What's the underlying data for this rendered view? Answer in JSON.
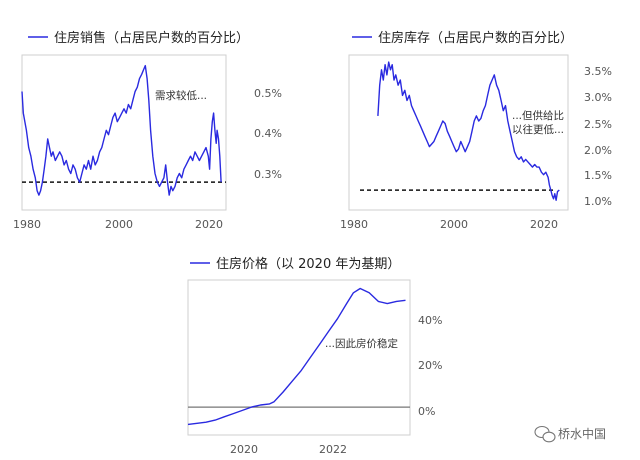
{
  "watermark": "桥水中国",
  "colors": {
    "series": "#2a2ae0",
    "refline": "#111111",
    "zeroline": "#777777"
  },
  "chart_data": [
    {
      "type": "line",
      "title": "住房销售（占居民户数的百分比）",
      "annotation": "需求较低...",
      "x_ticks": [
        "1980",
        "2000",
        "2020"
      ],
      "y_ticks": [
        "0.5%",
        "0.4%",
        "0.3%"
      ],
      "xlim": [
        1978,
        2024
      ],
      "ylim": [
        0.24,
        0.59
      ],
      "reference_line": 0.3,
      "series": [
        {
          "x": [
            1978.0,
            1978.3,
            1979.0,
            1979.5,
            1980.0,
            1980.5,
            1981.0,
            1981.4,
            1981.8,
            1982.2,
            1982.6,
            1983.0,
            1983.4,
            1983.8,
            1984.2,
            1984.6,
            1985.0,
            1985.5,
            1986.0,
            1986.5,
            1987.0,
            1987.5,
            1988.0,
            1988.5,
            1989.0,
            1989.5,
            1990.0,
            1990.5,
            1991.0,
            1991.5,
            1992.0,
            1992.5,
            1993.0,
            1993.5,
            1994.0,
            1994.5,
            1995.0,
            1995.5,
            1996.0,
            1996.5,
            1997.0,
            1997.5,
            1998.0,
            1998.5,
            1999.0,
            1999.5,
            2000.0,
            2000.5,
            2001.0,
            2001.5,
            2002.0,
            2002.5,
            2003.0,
            2003.5,
            2004.0,
            2004.5,
            2005.0,
            2005.4,
            2005.8,
            2006.2,
            2006.6,
            2007.0,
            2007.5,
            2008.0,
            2008.5,
            2009.0,
            2009.5,
            2010.0,
            2010.4,
            2010.8,
            2011.2,
            2011.6,
            2012.0,
            2012.5,
            2013.0,
            2013.5,
            2014.0,
            2014.5,
            2015.0,
            2015.5,
            2016.0,
            2016.5,
            2017.0,
            2017.5,
            2018.0,
            2018.5,
            2019.0,
            2019.5,
            2020.0,
            2020.3,
            2020.6,
            2020.9,
            2021.2,
            2021.5,
            2021.8,
            2022.0,
            2022.3,
            2022.6,
            2022.9
          ],
          "y": [
            0.51,
            0.46,
            0.42,
            0.38,
            0.36,
            0.33,
            0.31,
            0.28,
            0.27,
            0.28,
            0.3,
            0.33,
            0.36,
            0.4,
            0.38,
            0.36,
            0.37,
            0.35,
            0.36,
            0.37,
            0.36,
            0.34,
            0.35,
            0.33,
            0.32,
            0.34,
            0.33,
            0.31,
            0.3,
            0.32,
            0.34,
            0.33,
            0.35,
            0.33,
            0.36,
            0.34,
            0.35,
            0.37,
            0.38,
            0.4,
            0.42,
            0.41,
            0.43,
            0.45,
            0.46,
            0.44,
            0.45,
            0.46,
            0.47,
            0.46,
            0.48,
            0.47,
            0.49,
            0.51,
            0.52,
            0.54,
            0.55,
            0.56,
            0.57,
            0.54,
            0.49,
            0.42,
            0.36,
            0.32,
            0.3,
            0.29,
            0.3,
            0.31,
            0.34,
            0.3,
            0.27,
            0.29,
            0.28,
            0.29,
            0.31,
            0.32,
            0.31,
            0.33,
            0.34,
            0.35,
            0.36,
            0.35,
            0.37,
            0.36,
            0.35,
            0.36,
            0.37,
            0.38,
            0.36,
            0.33,
            0.4,
            0.44,
            0.46,
            0.42,
            0.39,
            0.42,
            0.4,
            0.36,
            0.3
          ]
        }
      ]
    },
    {
      "type": "line",
      "title": "住房库存（占居民户数的百分比）",
      "annotation": [
        "...但供给比",
        "以往更低..."
      ],
      "x_ticks": [
        "1980",
        "2000",
        "2020"
      ],
      "y_ticks": [
        "3.5%",
        "3.0%",
        "2.5%",
        "2.0%",
        "1.5%",
        "1.0%"
      ],
      "xlim": [
        1978,
        2024
      ],
      "ylim": [
        0.8,
        3.75
      ],
      "reference_line": 1.15,
      "series": [
        {
          "x": [
            1982.0,
            1982.4,
            1982.8,
            1983.2,
            1983.6,
            1984.0,
            1984.4,
            1984.8,
            1985.2,
            1985.6,
            1986.0,
            1986.5,
            1987.0,
            1987.5,
            1988.0,
            1988.5,
            1989.0,
            1989.5,
            1990.0,
            1990.5,
            1991.0,
            1991.5,
            1992.0,
            1992.5,
            1993.0,
            1993.5,
            1994.0,
            1994.5,
            1995.0,
            1995.5,
            1996.0,
            1996.5,
            1997.0,
            1997.5,
            1998.0,
            1998.5,
            1999.0,
            1999.5,
            2000.0,
            2000.5,
            2001.0,
            2001.5,
            2002.0,
            2002.5,
            2003.0,
            2003.5,
            2004.0,
            2004.5,
            2005.0,
            2005.5,
            2006.0,
            2006.5,
            2007.0,
            2007.5,
            2008.0,
            2008.5,
            2009.0,
            2009.5,
            2010.0,
            2010.5,
            2011.0,
            2011.5,
            2012.0,
            2012.5,
            2013.0,
            2013.5,
            2014.0,
            2014.5,
            2015.0,
            2015.5,
            2016.0,
            2016.5,
            2017.0,
            2017.5,
            2018.0,
            2018.5,
            2019.0,
            2019.5,
            2020.0,
            2020.3,
            2020.6,
            2020.9,
            2021.2,
            2021.5,
            2021.8,
            2022.1,
            2022.5
          ],
          "y": [
            2.6,
            3.2,
            3.5,
            3.3,
            3.6,
            3.4,
            3.65,
            3.5,
            3.6,
            3.3,
            3.4,
            3.2,
            3.3,
            3.0,
            3.1,
            2.9,
            3.0,
            2.8,
            2.7,
            2.6,
            2.5,
            2.4,
            2.3,
            2.2,
            2.1,
            2.0,
            2.05,
            2.1,
            2.2,
            2.3,
            2.4,
            2.5,
            2.45,
            2.3,
            2.2,
            2.1,
            2.0,
            1.9,
            1.95,
            2.1,
            2.0,
            1.9,
            2.0,
            2.1,
            2.3,
            2.5,
            2.6,
            2.5,
            2.55,
            2.7,
            2.8,
            3.0,
            3.2,
            3.3,
            3.4,
            3.2,
            3.1,
            2.9,
            2.7,
            2.8,
            2.5,
            2.3,
            2.1,
            1.9,
            1.8,
            1.75,
            1.8,
            1.7,
            1.75,
            1.7,
            1.65,
            1.6,
            1.65,
            1.6,
            1.6,
            1.5,
            1.45,
            1.5,
            1.4,
            1.25,
            1.15,
            1.05,
            0.98,
            1.08,
            0.95,
            1.12,
            1.15
          ]
        }
      ]
    },
    {
      "type": "line",
      "title": "住房价格（以 2020 年为基期）",
      "annotation": "...因此房价稳定",
      "x_ticks": [
        "2020",
        "2022"
      ],
      "y_ticks": [
        "40%",
        "20%",
        "0%"
      ],
      "xlim": [
        2018.8,
        2023.7
      ],
      "ylim": [
        -12,
        58
      ],
      "reference_line": 0,
      "series": [
        {
          "x": [
            2018.8,
            2019.0,
            2019.2,
            2019.4,
            2019.6,
            2019.8,
            2020.0,
            2020.2,
            2020.4,
            2020.6,
            2020.7,
            2020.9,
            2021.1,
            2021.3,
            2021.5,
            2021.7,
            2021.9,
            2022.1,
            2022.3,
            2022.45,
            2022.6,
            2022.8,
            2023.0,
            2023.2,
            2023.4,
            2023.6
          ],
          "y": [
            -8,
            -7.5,
            -7,
            -6,
            -4.5,
            -3,
            -1.5,
            0,
            1,
            1.5,
            2.5,
            7,
            12,
            17,
            23,
            29,
            35,
            41,
            48,
            53,
            55,
            53,
            49,
            48,
            49,
            49.5
          ]
        }
      ]
    }
  ]
}
